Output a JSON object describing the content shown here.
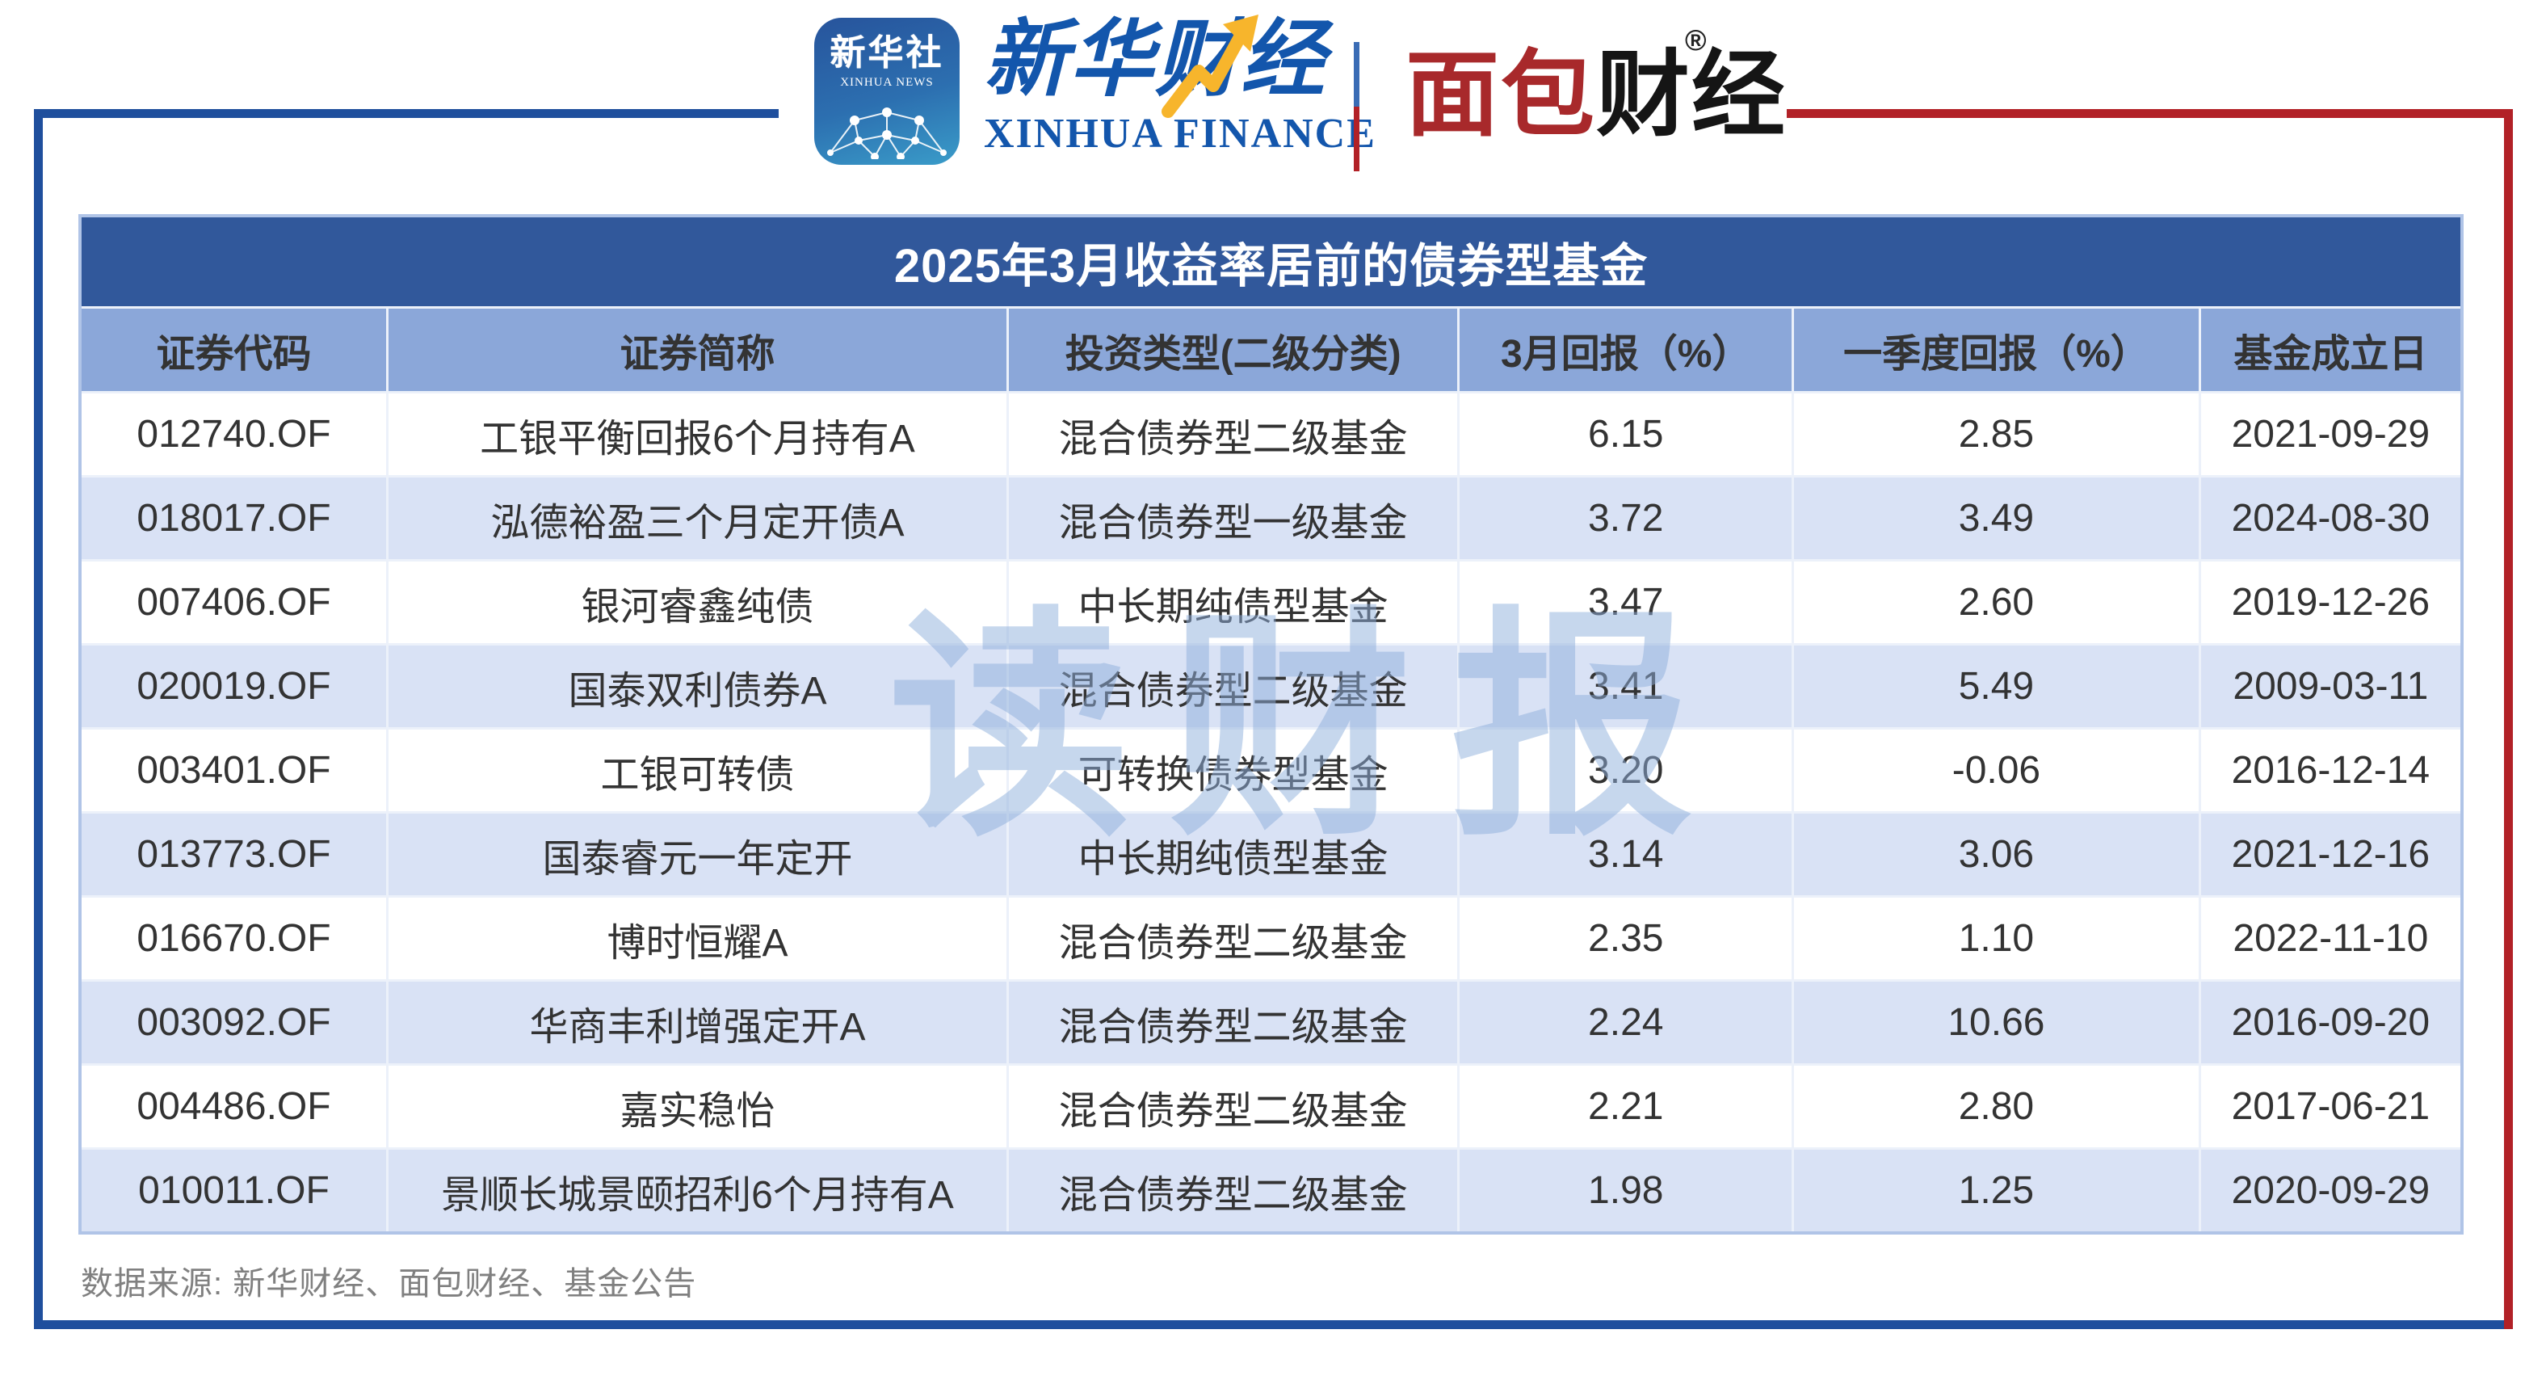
{
  "masthead": {
    "xinhua_news_badge": {
      "title": "新华社",
      "subtitle": "XINHUA NEWS"
    },
    "xinhua_finance_logo": {
      "cn": "新华财经",
      "en": "XINHUA FINANCE"
    },
    "bread_finance_logo": {
      "red_part": "面包",
      "black_part": "财经",
      "registered_mark": "®"
    }
  },
  "table": {
    "title": "2025年3月收益率居前的债券型基金",
    "columns": [
      "证券代码",
      "证券简称",
      "投资类型(二级分类)",
      "3月回报（%）",
      "一季度回报（%）",
      "基金成立日"
    ],
    "rows": [
      [
        "012740.OF",
        "工银平衡回报6个月持有A",
        "混合债券型二级基金",
        "6.15",
        "2.85",
        "2021-09-29"
      ],
      [
        "018017.OF",
        "泓德裕盈三个月定开债A",
        "混合债券型一级基金",
        "3.72",
        "3.49",
        "2024-08-30"
      ],
      [
        "007406.OF",
        "银河睿鑫纯债",
        "中长期纯债型基金",
        "3.47",
        "2.60",
        "2019-12-26"
      ],
      [
        "020019.OF",
        "国泰双利债券A",
        "混合债券型二级基金",
        "3.41",
        "5.49",
        "2009-03-11"
      ],
      [
        "003401.OF",
        "工银可转债",
        "可转换债券型基金",
        "3.20",
        "-0.06",
        "2016-12-14"
      ],
      [
        "013773.OF",
        "国泰睿元一年定开",
        "中长期纯债型基金",
        "3.14",
        "3.06",
        "2021-12-16"
      ],
      [
        "016670.OF",
        "博时恒耀A",
        "混合债券型二级基金",
        "2.35",
        "1.10",
        "2022-11-10"
      ],
      [
        "003092.OF",
        "华商丰利增强定开A",
        "混合债券型二级基金",
        "2.24",
        "10.66",
        "2016-09-20"
      ],
      [
        "004486.OF",
        "嘉实稳怡",
        "混合债券型二级基金",
        "2.21",
        "2.80",
        "2017-06-21"
      ],
      [
        "010011.OF",
        "景顺长城景颐招利6个月持有A",
        "混合债券型二级基金",
        "1.98",
        "1.25",
        "2020-09-29"
      ]
    ]
  },
  "watermark": "读财报",
  "footer": {
    "source": "数据来源: 新华财经、面包财经、基金公告"
  },
  "colors": {
    "frame_blue": "#1F4F9D",
    "frame_red": "#B22127",
    "title_bar": "#31589B",
    "header_row": "#8BA7D9",
    "row_alt": "#D9E2F5",
    "logo_blue": "#1356AC",
    "logo_red": "#A8292B",
    "arrow_yellow": "#F7B52C",
    "watermark_blue": "#8FB0DC",
    "footer_gray": "#808080"
  },
  "chart_data": {
    "type": "table",
    "title": "2025年3月收益率居前的债券型基金",
    "columns": [
      "证券代码",
      "证券简称",
      "投资类型(二级分类)",
      "3月回报（%）",
      "一季度回报（%）",
      "基金成立日"
    ],
    "rows": [
      [
        "012740.OF",
        "工银平衡回报6个月持有A",
        "混合债券型二级基金",
        6.15,
        2.85,
        "2021-09-29"
      ],
      [
        "018017.OF",
        "泓德裕盈三个月定开债A",
        "混合债券型一级基金",
        3.72,
        3.49,
        "2024-08-30"
      ],
      [
        "007406.OF",
        "银河睿鑫纯债",
        "中长期纯债型基金",
        3.47,
        2.6,
        "2019-12-26"
      ],
      [
        "020019.OF",
        "国泰双利债券A",
        "混合债券型二级基金",
        3.41,
        5.49,
        "2009-03-11"
      ],
      [
        "003401.OF",
        "工银可转债",
        "可转换债券型基金",
        3.2,
        -0.06,
        "2016-12-14"
      ],
      [
        "013773.OF",
        "国泰睿元一年定开",
        "中长期纯债型基金",
        3.14,
        3.06,
        "2021-12-16"
      ],
      [
        "016670.OF",
        "博时恒耀A",
        "混合债券型二级基金",
        2.35,
        1.1,
        "2022-11-10"
      ],
      [
        "003092.OF",
        "华商丰利增强定开A",
        "混合债券型二级基金",
        2.24,
        10.66,
        "2016-09-20"
      ],
      [
        "004486.OF",
        "嘉实稳怡",
        "混合债券型二级基金",
        2.21,
        2.8,
        "2017-06-21"
      ],
      [
        "010011.OF",
        "景顺长城景颐招利6个月持有A",
        "混合债券型二级基金",
        1.98,
        1.25,
        "2020-09-29"
      ]
    ],
    "source_note": "数据来源: 新华财经、面包财经、基金公告"
  }
}
